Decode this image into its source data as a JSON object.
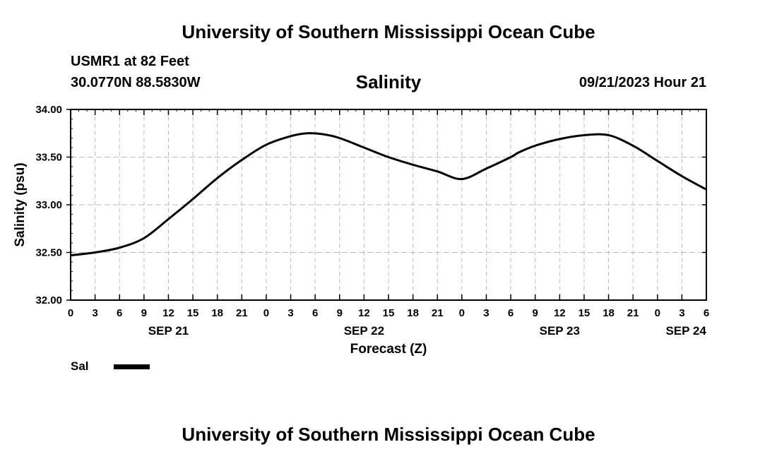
{
  "header": {
    "title": "University of Southern Mississippi Ocean Cube",
    "station": "USMR1 at 82 Feet",
    "coordinates": "30.0770N  88.5830W",
    "timestamp": "09/21/2023 Hour 21"
  },
  "footer": {
    "title": "University of Southern Mississippi Ocean Cube"
  },
  "legend": {
    "label": "Sal",
    "color": "#000000"
  },
  "chart_data": {
    "type": "line",
    "title": "Salinity",
    "xlabel": "Forecast (Z)",
    "ylabel": "Salinity (psu)",
    "ylim": [
      32.0,
      34.0
    ],
    "yticks": [
      "32.00",
      "32.50",
      "33.00",
      "33.50",
      "34.00"
    ],
    "xlim_hours": [
      0,
      78
    ],
    "xtick_labels": [
      "0",
      "3",
      "6",
      "9",
      "12",
      "15",
      "18",
      "21",
      "0",
      "3",
      "6",
      "9",
      "12",
      "15",
      "18",
      "21",
      "0",
      "3",
      "6",
      "9",
      "12",
      "15",
      "18",
      "21",
      "0",
      "3",
      "6"
    ],
    "date_labels": [
      {
        "label": "SEP 21",
        "hour": 12
      },
      {
        "label": "SEP 22",
        "hour": 36
      },
      {
        "label": "SEP 23",
        "hour": 60
      },
      {
        "label": "SEP 24",
        "hour": 75.5
      }
    ],
    "grid": true,
    "series": [
      {
        "name": "Sal",
        "x_hours": [
          0,
          3,
          6,
          9,
          12,
          15,
          18,
          21,
          24,
          27,
          29,
          31,
          33,
          36,
          39,
          42,
          45,
          48,
          51,
          54,
          55,
          57,
          60,
          63,
          66,
          69,
          72,
          75,
          78
        ],
        "values": [
          32.47,
          32.5,
          32.55,
          32.65,
          32.85,
          33.06,
          33.28,
          33.47,
          33.63,
          33.72,
          33.75,
          33.74,
          33.7,
          33.6,
          33.5,
          33.42,
          33.35,
          33.27,
          33.38,
          33.5,
          33.55,
          33.62,
          33.69,
          33.73,
          33.73,
          33.62,
          33.46,
          33.3,
          33.16
        ]
      }
    ]
  }
}
